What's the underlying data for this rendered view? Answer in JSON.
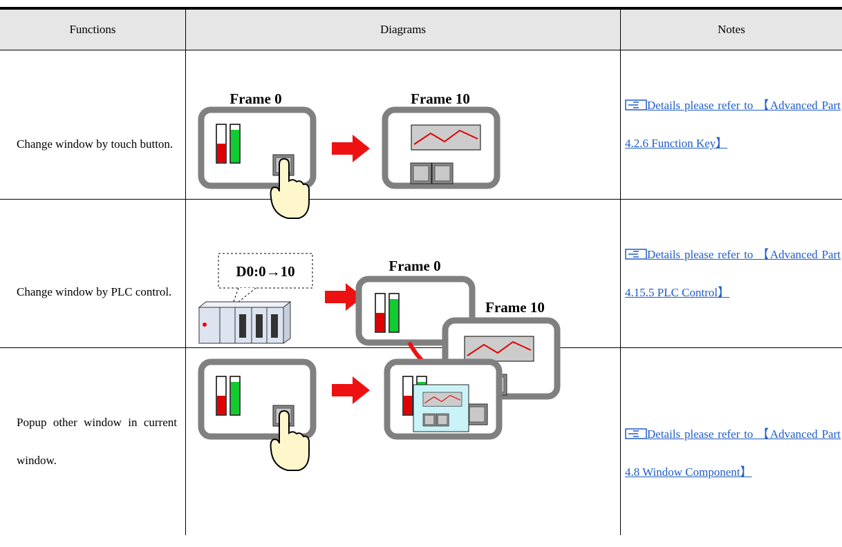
{
  "table": {
    "header": [
      "Functions",
      "Diagrams",
      "Notes"
    ],
    "rows": [
      {
        "function": "Change window by touch button.",
        "diagram_labels": [
          "Frame 0",
          "Frame 10"
        ],
        "note": "Details please refer to 【Advanced Part 4.2.6 Function Key】"
      },
      {
        "function": "Change window by PLC control.",
        "diagram_labels": [
          "D0:0→10",
          "Frame 0",
          "Frame 10"
        ],
        "note": "Details please refer to 【Advanced Part 4.15.5 PLC Control】"
      },
      {
        "function": "Popup other window in current window.",
        "diagram_labels": [],
        "note": "Details please refer to 【Advanced Part 4.8 Window Component】"
      }
    ]
  }
}
